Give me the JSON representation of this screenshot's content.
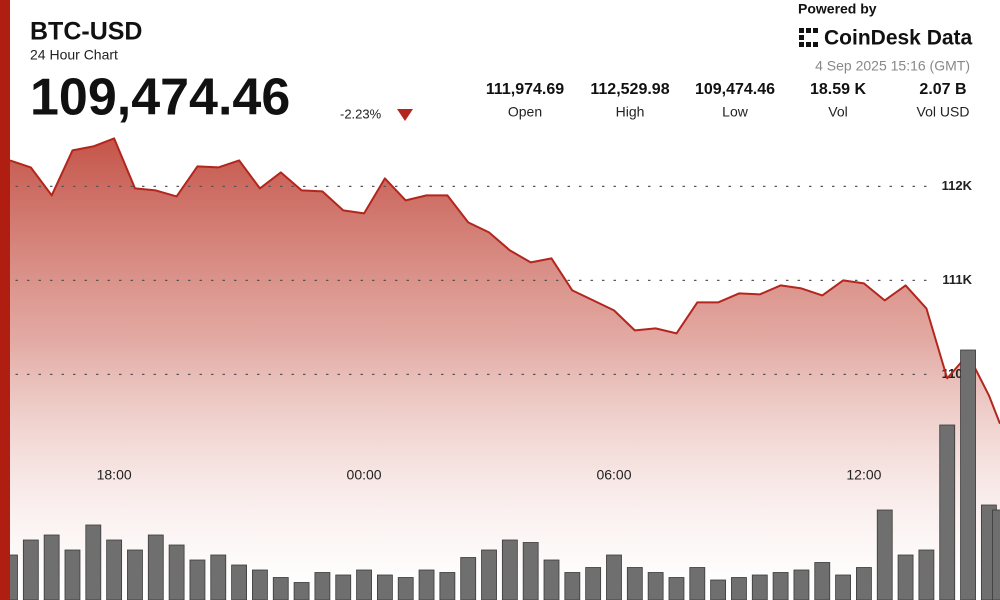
{
  "header": {
    "symbol": "BTC-USD",
    "subtitle": "24 Hour Chart",
    "price": "109,474.46",
    "change": "-2.23%"
  },
  "stats": [
    {
      "value": "111,974.69",
      "label": "Open"
    },
    {
      "value": "112,529.98",
      "label": "High"
    },
    {
      "value": "109,474.46",
      "label": "Low"
    },
    {
      "value": "18.59 K",
      "label": "Vol"
    },
    {
      "value": "2.07 B",
      "label": "Vol USD"
    }
  ],
  "branding": {
    "powered_by": "Powered by",
    "brand": "CoinDesk Data",
    "timestamp": "4 Sep 2025 15:16 (GMT)"
  },
  "chart_data": {
    "type": "area",
    "x": [
      15.5,
      16,
      16.5,
      17,
      17.5,
      18,
      18.5,
      19,
      19.5,
      20,
      20.5,
      21,
      21.5,
      22,
      22.5,
      23,
      23.5,
      24,
      24.5,
      25,
      25.5,
      26,
      26.5,
      27,
      27.5,
      28,
      28.5,
      29,
      29.5,
      30,
      30.5,
      31,
      31.5,
      32,
      32.5,
      33,
      33.5,
      34,
      34.5,
      35,
      35.5,
      36,
      36.5,
      37,
      37.5,
      38,
      38.5,
      39,
      39.267
    ],
    "values": [
      112277,
      112202,
      111904,
      112383,
      112426,
      112511,
      111979,
      111957,
      111894,
      112213,
      112202,
      112277,
      111979,
      112149,
      111957,
      111947,
      111745,
      111713,
      112085,
      111851,
      111904,
      111904,
      111617,
      111511,
      111319,
      111191,
      111234,
      110894,
      110787,
      110681,
      110468,
      110489,
      110436,
      110766,
      110766,
      110862,
      110851,
      110947,
      110915,
      110840,
      111000,
      110968,
      110787,
      110947,
      110702,
      109957,
      110213,
      109777,
      109474.46
    ],
    "color": "#b3261e",
    "xlim": [
      15.5,
      39.267
    ],
    "xticks": [
      {
        "value": 18,
        "label": "18:00"
      },
      {
        "value": 24,
        "label": "00:00"
      },
      {
        "value": 30,
        "label": "06:00"
      },
      {
        "value": 36,
        "label": "12:00"
      }
    ],
    "ylim": [
      107600,
      112600
    ],
    "yticks": [
      {
        "value": 112000,
        "label": "112K"
      },
      {
        "value": 111000,
        "label": "111K"
      },
      {
        "value": 110000,
        "label": "110K"
      }
    ],
    "grid": true,
    "volume": {
      "values": [
        180,
        240,
        260,
        200,
        300,
        240,
        200,
        260,
        220,
        160,
        180,
        140,
        120,
        90,
        70,
        110,
        100,
        120,
        100,
        90,
        120,
        110,
        170,
        200,
        240,
        230,
        160,
        110,
        130,
        180,
        130,
        110,
        90,
        130,
        80,
        90,
        100,
        110,
        120,
        150,
        100,
        130,
        360,
        180,
        200,
        700,
        1000,
        380,
        360
      ],
      "ylim": [
        0,
        1000
      ],
      "color": "#6f6f6f"
    }
  }
}
